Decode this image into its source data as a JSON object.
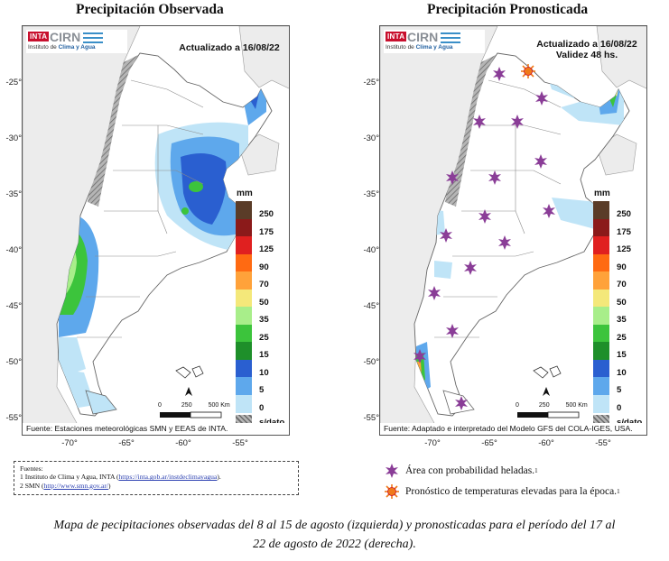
{
  "left_title": "Precipitación Observada",
  "right_title": "Precipitación Pronosticada",
  "logo": {
    "inta": "INTA",
    "cirn": "CIRN",
    "sub_prefix": "Instituto de ",
    "sub_bold": "Clima y Agua"
  },
  "left_update": "Actualizado a 16/08/22",
  "right_update_1": "Actualizado a 16/08/22",
  "right_update_2": "Validez 48 hs.",
  "left_source": "Fuente: Estaciones meteorológicas SMN y EEAS de INTA.",
  "right_source": "Fuente: Adaptado e interpretado del Modelo GFS del COLA-IGES, USA.",
  "lat_labels": [
    "-25°",
    "-30°",
    "-35°",
    "-40°",
    "-45°",
    "-50°",
    "-55°"
  ],
  "left_lon_labels": [
    "-70°",
    "-65°",
    "-60°",
    "-55°"
  ],
  "right_lon_labels": [
    "-70°",
    "-65°",
    "-60°",
    "-55°"
  ],
  "scale": {
    "zero": "0",
    "mid": "250",
    "end": "500 Km"
  },
  "legend": {
    "unit": "mm",
    "classes": [
      {
        "label": "250",
        "color": "#5a3c28"
      },
      {
        "label": "175",
        "color": "#8b1a1a"
      },
      {
        "label": "125",
        "color": "#e02020"
      },
      {
        "label": "90",
        "color": "#ff6a12"
      },
      {
        "label": "70",
        "color": "#ffa23a"
      },
      {
        "label": "50",
        "color": "#f4e87a"
      },
      {
        "label": "35",
        "color": "#a8ee8a"
      },
      {
        "label": "25",
        "color": "#3cc43c"
      },
      {
        "label": "15",
        "color": "#1e8f2a"
      },
      {
        "label": "10",
        "color": "#2a5fd0"
      },
      {
        "label": "5",
        "color": "#5ea8ec"
      },
      {
        "label": "0",
        "color": "#bfe4f7"
      }
    ],
    "nodata": {
      "label": "s/dato",
      "color": "#999999"
    }
  },
  "sources": {
    "heading": "Fuentes:",
    "line1_text": "1 Instituto de Clima y Agua, INTA (",
    "line1_link": "https://inta.gob.ar/instdeclimayagua",
    "line1_end": ").",
    "line2_text": "2 SMN (",
    "line2_link": "http://www.smn.gov.ar/",
    "line2_end": ")"
  },
  "key": {
    "frost": "Área con probabilidad heladas.",
    "frost_sup": "1",
    "heat": "Pronóstico de temperaturas elevadas para la época.",
    "heat_sup": "1"
  },
  "caption_line1": "Mapa de pecipitaciones observadas del 8 al 15 de agosto (izquierda) y pronosticadas para el período del 17 al",
  "caption_line2": "22 de agosto de 2022 (derecha).",
  "colors": {
    "frost": "#8a3d97",
    "heat": "#f07a1a"
  }
}
